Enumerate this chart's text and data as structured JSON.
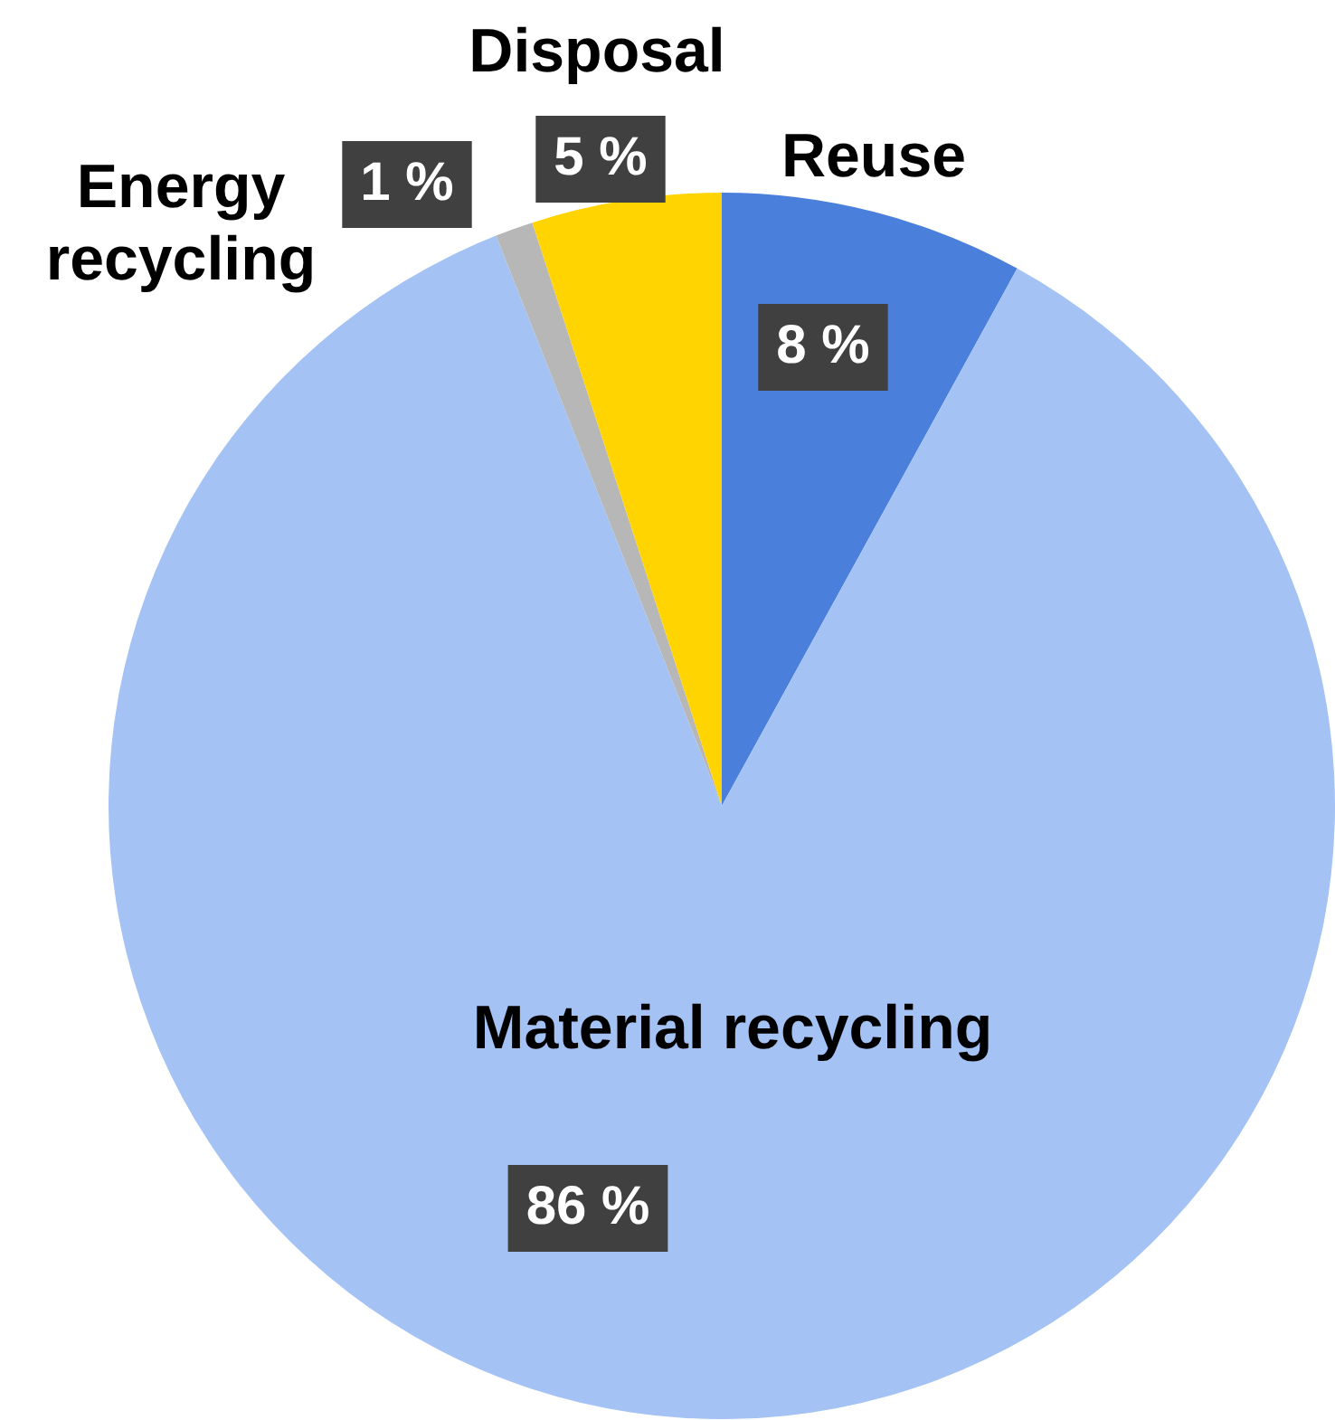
{
  "chart_data": {
    "type": "pie",
    "categories": [
      "Reuse",
      "Material recycling",
      "Energy recycling",
      "Disposal"
    ],
    "values": [
      8,
      86,
      1,
      5
    ],
    "colors": [
      "#4a7fdc",
      "#a4c2f4",
      "#b7b7b7",
      "#ffd400"
    ],
    "value_labels": [
      "8 %",
      "86 %",
      "1 %",
      "5 %"
    ],
    "legend": false
  }
}
